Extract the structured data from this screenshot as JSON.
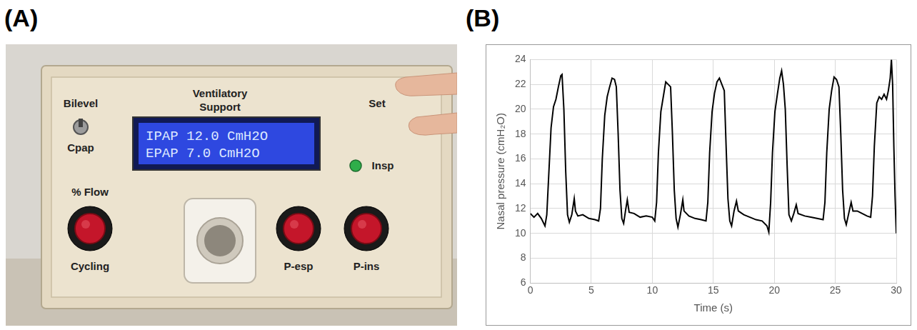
{
  "photo_panel": {
    "panel_label": "(A)",
    "device": {
      "title": "Ventilatory Support",
      "switch_labels": [
        "Bilevel",
        "Cpap"
      ],
      "display_lines": [
        "IPAP 12.0 CmH2O",
        "EPAP 7.0 CmH2O"
      ],
      "set_label": "Set",
      "indicator_label": "Insp",
      "knobs": [
        {
          "top": "% Flow",
          "bottom": "Cycling"
        },
        {
          "bottom": "P-esp"
        },
        {
          "bottom": "P-ins"
        }
      ]
    }
  },
  "chart_data": {
    "type": "line",
    "panel_label": "(B)",
    "x_label": "Time (s)",
    "y_label": "Nasal pressure (cmH₂O)",
    "xlim": [
      0,
      30
    ],
    "xticks": [
      0,
      5,
      10,
      15,
      20,
      25,
      30
    ],
    "ylim": [
      6,
      24
    ],
    "yticks": [
      6,
      8,
      10,
      12,
      14,
      16,
      18,
      20,
      22,
      24
    ],
    "grid": true,
    "color": "#000000",
    "x": [
      0,
      0.3,
      0.6,
      0.9,
      1.2,
      1.35,
      1.5,
      1.7,
      1.9,
      2.1,
      2.3,
      2.5,
      2.6,
      2.75,
      2.9,
      3.05,
      3.2,
      3.4,
      3.6,
      3.7,
      3.9,
      4.3,
      4.8,
      5.3,
      5.6,
      5.75,
      5.9,
      6.1,
      6.3,
      6.5,
      6.7,
      6.9,
      7.05,
      7.2,
      7.35,
      7.5,
      7.65,
      7.8,
      7.95,
      8.1,
      8.5,
      9,
      9.5,
      10,
      10.2,
      10.35,
      10.5,
      10.7,
      10.9,
      11.1,
      11.3,
      11.5,
      11.65,
      11.8,
      11.95,
      12.1,
      12.3,
      12.5,
      12.6,
      13,
      13.5,
      14,
      14.4,
      14.55,
      14.7,
      14.9,
      15.1,
      15.3,
      15.5,
      15.7,
      15.9,
      16.05,
      16.2,
      16.35,
      16.5,
      16.7,
      16.9,
      17.05,
      17.5,
      18,
      18.5,
      19,
      19.4,
      19.55,
      19.7,
      19.85,
      20.05,
      20.25,
      20.45,
      20.6,
      20.75,
      20.9,
      21.05,
      21.2,
      21.4,
      21.6,
      21.8,
      21.95,
      22.5,
      23,
      23.5,
      24,
      24.15,
      24.3,
      24.5,
      24.7,
      24.9,
      25.1,
      25.3,
      25.45,
      25.6,
      25.75,
      25.9,
      26.1,
      26.3,
      26.45,
      26.8,
      27.2,
      27.6,
      27.9,
      28.05,
      28.2,
      28.4,
      28.6,
      28.8,
      29,
      29.2,
      29.35,
      29.5,
      29.6,
      29.7,
      29.8,
      29.9,
      30
    ],
    "values": [
      11.6,
      11.3,
      11.6,
      11.2,
      10.6,
      11.5,
      14.5,
      18.5,
      20.2,
      20.8,
      21.8,
      22.7,
      22.8,
      20,
      15,
      11.5,
      10.9,
      11.5,
      12.8,
      11.8,
      11.4,
      11.5,
      11.2,
      11.1,
      11.0,
      12,
      16,
      19.5,
      21,
      21.8,
      22.5,
      22.4,
      21.8,
      18,
      13.5,
      11.2,
      10.8,
      11.8,
      12.7,
      11.7,
      11.6,
      11.3,
      11.4,
      11.3,
      11.0,
      12.5,
      16.5,
      19.8,
      21,
      22.2,
      22,
      21.8,
      18,
      13.5,
      11.2,
      10.5,
      11.5,
      12.7,
      11.8,
      11.4,
      11.2,
      11.1,
      11.0,
      12.5,
      16.5,
      19.8,
      21.3,
      22.2,
      22.5,
      22,
      21.5,
      17,
      12.8,
      11,
      10.6,
      11.8,
      12.6,
      11.8,
      11.5,
      11.3,
      11.1,
      11,
      10.6,
      10.1,
      12.5,
      16.5,
      19.8,
      21.2,
      22.5,
      23.1,
      22,
      20,
      15.5,
      11.5,
      11,
      11.6,
      12.3,
      11.6,
      11.4,
      11.3,
      11.2,
      11.1,
      12.5,
      16.5,
      20,
      21.5,
      22.6,
      22.4,
      21.8,
      18,
      13.5,
      11.2,
      10.7,
      11.6,
      12.5,
      11.8,
      11.8,
      11.6,
      11.4,
      11.3,
      13,
      17,
      20.5,
      21,
      20.8,
      21.2,
      20.8,
      21.5,
      22.5,
      24,
      22,
      17,
      13,
      10
    ]
  }
}
